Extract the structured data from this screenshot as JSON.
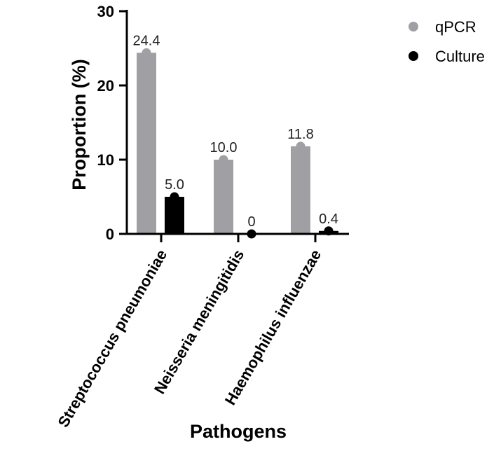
{
  "chart_data": {
    "type": "bar",
    "xlabel": "Pathogens",
    "ylabel": "Proportion (%)",
    "ylim": [
      0,
      30
    ],
    "yticks": [
      0,
      10,
      20,
      30
    ],
    "categories": [
      "Streptococcus pneumoniae",
      "Neisseria meningitidis",
      "Haemophilus influenzae"
    ],
    "series": [
      {
        "name": "qPCR",
        "values": [
          24.4,
          10.0,
          11.8
        ],
        "labels": [
          "24.4",
          "10.0",
          "11.8"
        ],
        "color": "#a0a0a4"
      },
      {
        "name": "Culture",
        "values": [
          5.0,
          0,
          0.4
        ],
        "labels": [
          "5.0",
          "0",
          "0.4"
        ],
        "color": "#000000"
      }
    ],
    "legend": "top-right",
    "grid": false
  }
}
